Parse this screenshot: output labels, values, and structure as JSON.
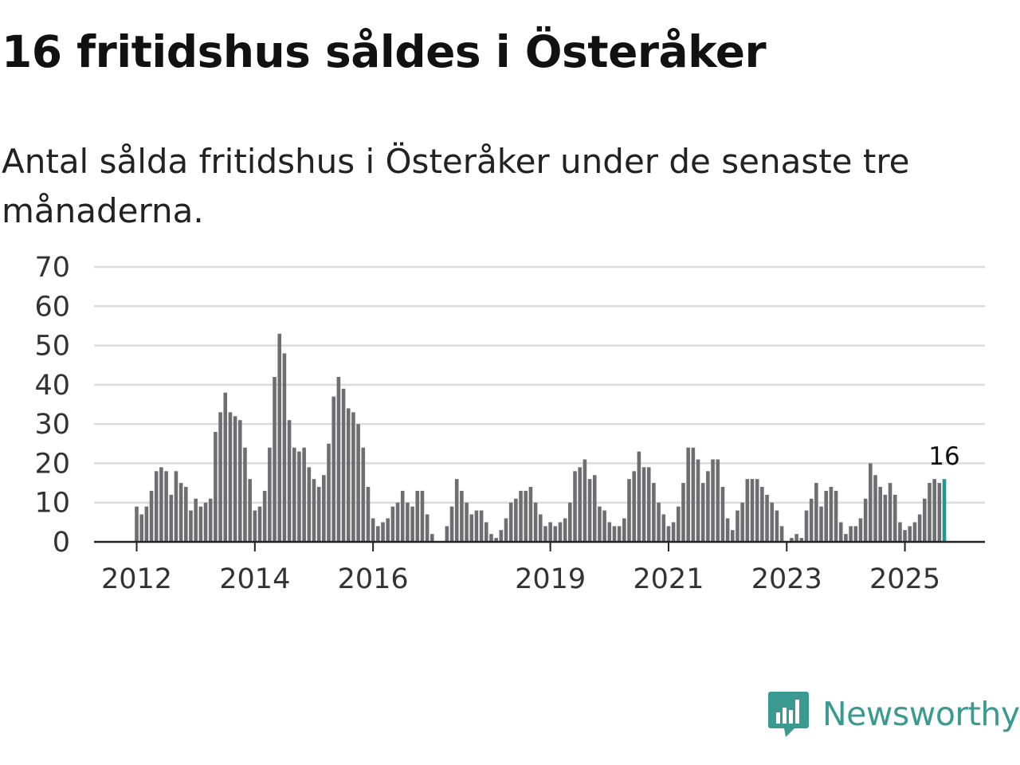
{
  "title": "16 fritidshus såldes i Österåker",
  "subtitle": "Antal sålda fritidshus i Österåker under de senaste tre månaderna.",
  "brand": {
    "name": "Newsworthy",
    "color": "#3a9a91",
    "icon": "newsworthy-logo-icon"
  },
  "chart_data": {
    "type": "bar",
    "title": "16 fritidshus såldes i Österåker",
    "subtitle": "Antal sålda fritidshus i Österåker under de senaste tre månaderna.",
    "xlabel": "",
    "ylabel": "",
    "ylim": [
      0,
      70
    ],
    "y_ticks": [
      "0",
      "10",
      "20",
      "30",
      "40",
      "50",
      "60",
      "70"
    ],
    "x_tick_labels": [
      {
        "label": "2012",
        "index": 0
      },
      {
        "label": "2014",
        "index": 24
      },
      {
        "label": "2016",
        "index": 48
      },
      {
        "label": "2019",
        "index": 84
      },
      {
        "label": "2021",
        "index": 108
      },
      {
        "label": "2023",
        "index": 132
      },
      {
        "label": "2025",
        "index": 156
      }
    ],
    "grid": true,
    "bar_color": "#6e6d72",
    "highlight_color": "#1f9a93",
    "highlight_label": "16",
    "values": [
      9,
      7,
      9,
      13,
      18,
      19,
      18,
      12,
      18,
      15,
      14,
      8,
      11,
      9,
      10,
      11,
      28,
      33,
      38,
      33,
      32,
      31,
      24,
      16,
      8,
      9,
      13,
      24,
      42,
      53,
      48,
      31,
      24,
      23,
      24,
      19,
      16,
      14,
      17,
      25,
      37,
      42,
      39,
      34,
      33,
      30,
      24,
      14,
      6,
      4,
      5,
      6,
      9,
      10,
      13,
      10,
      9,
      13,
      13,
      7,
      2,
      0,
      0,
      4,
      9,
      16,
      13,
      10,
      7,
      8,
      8,
      5,
      2,
      1,
      3,
      6,
      10,
      11,
      13,
      13,
      14,
      10,
      7,
      4,
      5,
      4,
      5,
      6,
      10,
      18,
      19,
      21,
      16,
      17,
      9,
      8,
      5,
      4,
      4,
      6,
      16,
      18,
      23,
      19,
      19,
      15,
      10,
      7,
      4,
      5,
      9,
      15,
      24,
      24,
      21,
      15,
      18,
      21,
      21,
      14,
      6,
      3,
      8,
      10,
      16,
      16,
      16,
      14,
      12,
      10,
      8,
      4,
      0,
      1,
      2,
      1,
      8,
      11,
      15,
      9,
      13,
      14,
      13,
      5,
      2,
      4,
      4,
      6,
      11,
      20,
      17,
      14,
      12,
      15,
      12,
      5,
      3,
      4,
      5,
      7,
      11,
      15,
      16,
      15,
      16
    ]
  }
}
